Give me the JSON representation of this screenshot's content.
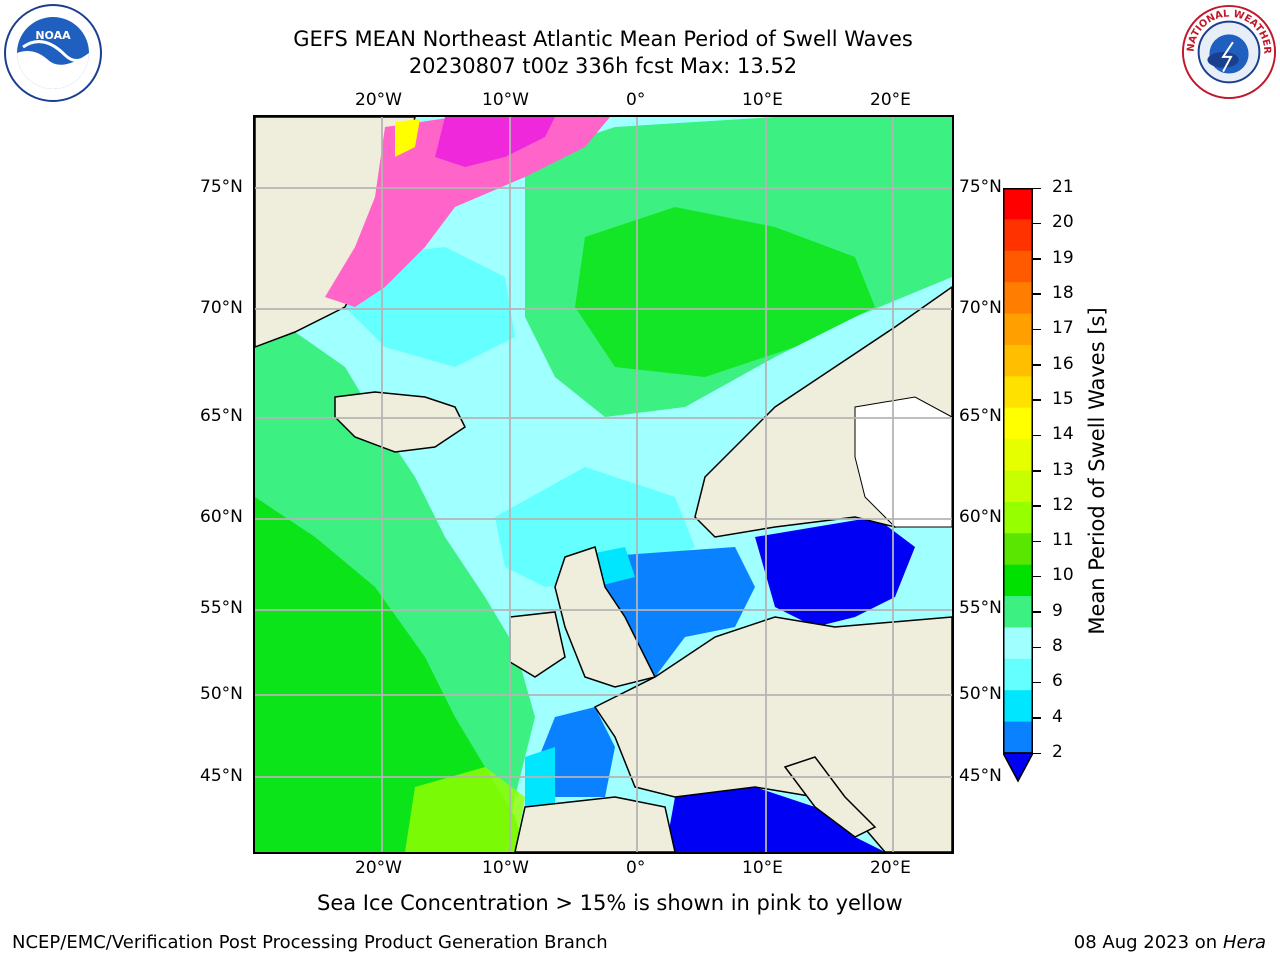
{
  "title": {
    "line1": "GEFS MEAN Northeast Atlantic Mean Period of Swell Waves",
    "line2": "20230807 t00z 336h fcst   Max: 13.52"
  },
  "logos": {
    "left": "NOAA",
    "right": "NATIONAL WEATHER SERVICE"
  },
  "map": {
    "lon_labels": [
      "20°W",
      "10°W",
      "0°",
      "10°E",
      "20°E"
    ],
    "lat_labels": [
      "75°N",
      "70°N",
      "65°N",
      "60°N",
      "55°N",
      "50°N",
      "45°N"
    ],
    "colors": {
      "land": "#efeedc",
      "dark_blue": "#0000f5",
      "blue": "#0a82ff",
      "cyan": "#00e6ff",
      "light_cyan": "#64ffff",
      "pale_cyan": "#a0ffff",
      "light_green": "#3cf082",
      "green": "#00e100",
      "ice_pink": "#ff64c8",
      "ice_magenta": "#f028dc",
      "grid": "#b4b4b4"
    }
  },
  "colorbar": {
    "label": "Mean Period of Swell Waves [s]",
    "ticks": [
      "21",
      "20",
      "19",
      "18",
      "17",
      "16",
      "15",
      "14",
      "13",
      "12",
      "11",
      "10",
      "9",
      "8",
      "6",
      "4",
      "2"
    ],
    "colors": [
      "#ff0000",
      "#ff3200",
      "#ff5a00",
      "#ff7d00",
      "#ffa000",
      "#ffbe00",
      "#ffe100",
      "#ffff00",
      "#e6ff00",
      "#c8ff00",
      "#96ff00",
      "#5ae600",
      "#00e100",
      "#3cf082",
      "#a0ffff",
      "#64ffff",
      "#00e6ff",
      "#0a82ff",
      "#0000f5"
    ]
  },
  "note": "Sea Ice Concentration > 15% is shown in pink to yellow",
  "footer": {
    "left": "NCEP/EMC/Verification Post Processing Product Generation Branch",
    "right_date": "08 Aug 2023 on",
    "right_host": "Hera"
  }
}
